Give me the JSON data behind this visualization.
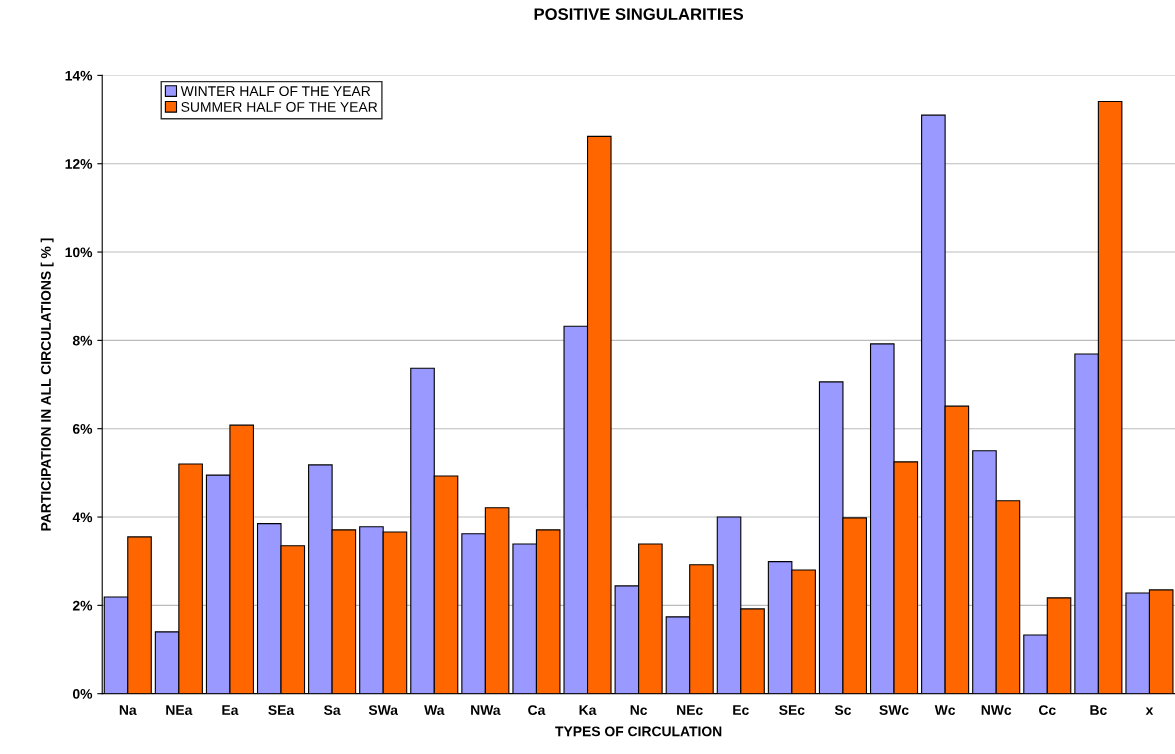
{
  "chart_data": {
    "type": "bar",
    "title": "POSITIVE SINGULARITIES",
    "xlabel": "TYPES OF CIRCULATION",
    "ylabel": "PARTICIPATION IN ALL CIRCULATIONS [ % ]",
    "categories": [
      "Na",
      "NEa",
      "Ea",
      "SEa",
      "Sa",
      "SWa",
      "Wa",
      "NWa",
      "Ca",
      "Ka",
      "Nc",
      "NEc",
      "Ec",
      "SEc",
      "Sc",
      "SWc",
      "Wc",
      "NWc",
      "Cc",
      "Bc",
      "x"
    ],
    "series": [
      {
        "name": "WINTER HALF OF THE YEAR",
        "color": "#9999ff",
        "values": [
          2.19,
          1.4,
          4.95,
          3.85,
          5.18,
          3.78,
          7.37,
          3.62,
          3.39,
          8.32,
          2.44,
          1.74,
          4.0,
          2.99,
          7.06,
          7.92,
          13.1,
          5.5,
          1.33,
          7.69,
          2.28
        ]
      },
      {
        "name": "SUMMER HALF OF THE YEAR",
        "color": "#ff6600",
        "values": [
          3.55,
          5.2,
          6.08,
          3.35,
          3.71,
          3.66,
          4.93,
          4.21,
          3.71,
          12.62,
          3.39,
          2.92,
          1.92,
          2.8,
          3.98,
          5.25,
          6.51,
          4.37,
          2.17,
          13.41,
          2.35
        ]
      }
    ],
    "ylim": [
      0,
      14
    ],
    "yticks": [
      {
        "value": 0,
        "label": "0%"
      },
      {
        "value": 2,
        "label": "2%"
      },
      {
        "value": 4,
        "label": "4%"
      },
      {
        "value": 6,
        "label": "6%"
      },
      {
        "value": 8,
        "label": "8%"
      },
      {
        "value": 10,
        "label": "10%"
      },
      {
        "value": 12,
        "label": "12%"
      },
      {
        "value": 14,
        "label": "14%"
      }
    ],
    "grid": "y",
    "legend": "top left"
  }
}
